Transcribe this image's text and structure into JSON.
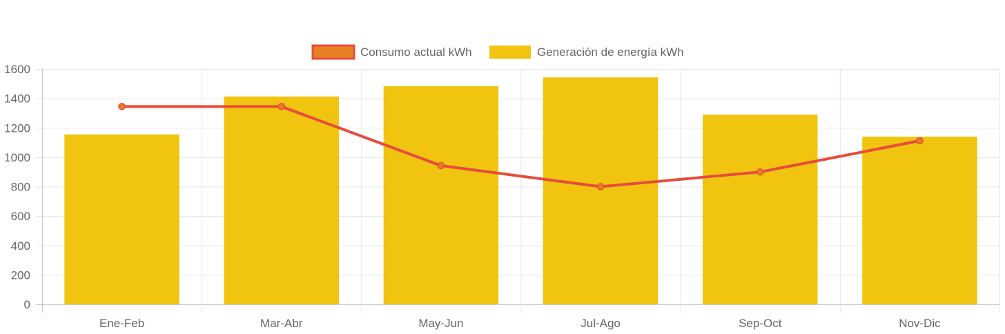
{
  "chart_data": {
    "type": "bar",
    "categories": [
      "Ene-Feb",
      "Mar-Abr",
      "May-Jun",
      "Jul-Ago",
      "Sep-Oct",
      "Nov-Dic"
    ],
    "ylim": [
      0,
      1600
    ],
    "yticks": [
      0,
      200,
      400,
      600,
      800,
      1000,
      1200,
      1400,
      1600
    ],
    "grid": true,
    "legend_position": "top-center",
    "series": [
      {
        "name": "Consumo actual kWh",
        "type": "line",
        "values": [
          1345,
          1345,
          943,
          800,
          900,
          1112
        ],
        "color": "#e74c3c",
        "point_fill": "#e67e22"
      },
      {
        "name": "Generación de energía kWh",
        "type": "bar",
        "values": [
          1155,
          1413,
          1483,
          1543,
          1290,
          1140
        ],
        "color": "#f1c40f"
      }
    ]
  }
}
